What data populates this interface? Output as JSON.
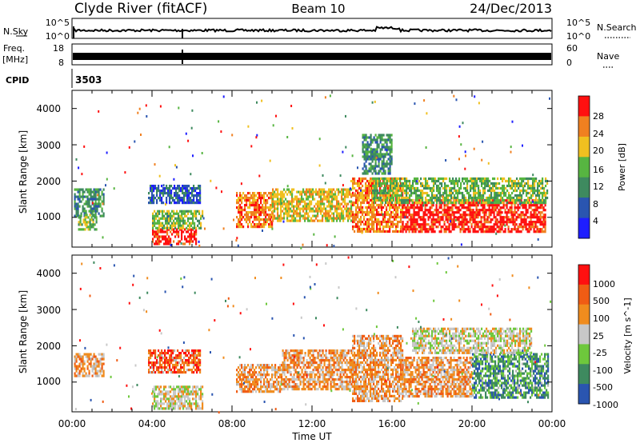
{
  "header": {
    "station": "Clyde River (fitACF)",
    "beam": "Beam 10",
    "date": "24/Dec/2013"
  },
  "noise_panel": {
    "left_label": "N.Sky",
    "right_label": "N.Search",
    "left_ticks": [
      "10^5",
      "10^0"
    ],
    "right_ticks": [
      "10^5",
      "10^0"
    ]
  },
  "freq_panel": {
    "left_label_line1": "Freq.",
    "left_label_line2": "[MHz]",
    "right_label": "Nave",
    "left_ticks": [
      "18",
      "8"
    ],
    "right_ticks": [
      "60",
      "0"
    ]
  },
  "cpid": {
    "label": "CPID",
    "value": "3503"
  },
  "x_axis": {
    "label": "Time UT",
    "ticks": [
      "00:00",
      "04:00",
      "08:00",
      "12:00",
      "16:00",
      "20:00",
      "00:00"
    ]
  },
  "colors": {
    "power_scale": [
      "#1e1eff",
      "#2a55b0",
      "#3e8a5f",
      "#57b541",
      "#f0c020",
      "#f08020",
      "#ff1010"
    ],
    "velocity_scale": [
      "#ff1010",
      "#f05c14",
      "#f08c1e",
      "#c8c8c8",
      "#6ec83c",
      "#3e8a5f",
      "#2a55b0"
    ],
    "ground_scatter": "#b4b4b4"
  },
  "chart_data": [
    {
      "type": "heatmap",
      "panel": "power",
      "ylabel": "Slant Range [km]",
      "y_ticks": [
        "1000",
        "2000",
        "3000",
        "4000"
      ],
      "ylim": [
        180,
        4500
      ],
      "xlim_hours": [
        0,
        24
      ],
      "colorbar_label": "Power [dB]",
      "colorbar_ticks": [
        "4",
        "8",
        "12",
        "16",
        "20",
        "24",
        "28"
      ],
      "regions": [
        {
          "t": [
            0.1,
            1.6
          ],
          "r": [
            1050,
            1800
          ],
          "level": 2
        },
        {
          "t": [
            0.3,
            1.2
          ],
          "r": [
            700,
            1100
          ],
          "level": 3
        },
        {
          "t": [
            3.8,
            6.4
          ],
          "r": [
            1400,
            1900
          ],
          "level": 1
        },
        {
          "t": [
            4.0,
            6.2
          ],
          "r": [
            300,
            700
          ],
          "level": 6
        },
        {
          "t": [
            4.0,
            6.5
          ],
          "r": [
            700,
            1200
          ],
          "level": 3
        },
        {
          "t": [
            8.2,
            10.0
          ],
          "r": [
            750,
            1700
          ],
          "level": 5
        },
        {
          "t": [
            10.0,
            14.0
          ],
          "r": [
            900,
            1800
          ],
          "level": 4
        },
        {
          "t": [
            14.0,
            16.5
          ],
          "r": [
            600,
            2100
          ],
          "level": 5
        },
        {
          "t": [
            16.5,
            23.7
          ],
          "r": [
            600,
            1500
          ],
          "level": 6
        },
        {
          "t": [
            15.0,
            23.8
          ],
          "r": [
            1400,
            2100
          ],
          "level": 3
        },
        {
          "t": [
            14.5,
            16.0
          ],
          "r": [
            2200,
            3300
          ],
          "level": 2
        }
      ]
    },
    {
      "type": "heatmap",
      "panel": "velocity",
      "ylabel": "Slant Range [km]",
      "y_ticks": [
        "1000",
        "2000",
        "3000",
        "4000"
      ],
      "ylim": [
        180,
        4500
      ],
      "xlim_hours": [
        0,
        24
      ],
      "colorbar_label": "Velocity [m s^-1]",
      "colorbar_ticks": [
        "1000",
        "500",
        "100",
        "25",
        "-25",
        "-100",
        "-500",
        "-1000"
      ],
      "regions": [
        {
          "t": [
            0.1,
            1.6
          ],
          "r": [
            1200,
            1800
          ],
          "level": 2
        },
        {
          "t": [
            3.8,
            6.4
          ],
          "r": [
            1300,
            1900
          ],
          "level": 1
        },
        {
          "t": [
            4.0,
            6.5
          ],
          "r": [
            300,
            900
          ],
          "level": 3
        },
        {
          "t": [
            8.2,
            10.5
          ],
          "r": [
            750,
            1500
          ],
          "level": 2
        },
        {
          "t": [
            10.5,
            14.0
          ],
          "r": [
            800,
            1900
          ],
          "level": 2
        },
        {
          "t": [
            14.0,
            16.5
          ],
          "r": [
            500,
            2300
          ],
          "level": 2
        },
        {
          "t": [
            16.5,
            20.0
          ],
          "r": [
            600,
            1700
          ],
          "level": 2
        },
        {
          "t": [
            20.0,
            23.8
          ],
          "r": [
            600,
            1800
          ],
          "level": 5
        },
        {
          "t": [
            17.0,
            23.0
          ],
          "r": [
            1800,
            2500
          ],
          "level": 3
        }
      ]
    }
  ]
}
